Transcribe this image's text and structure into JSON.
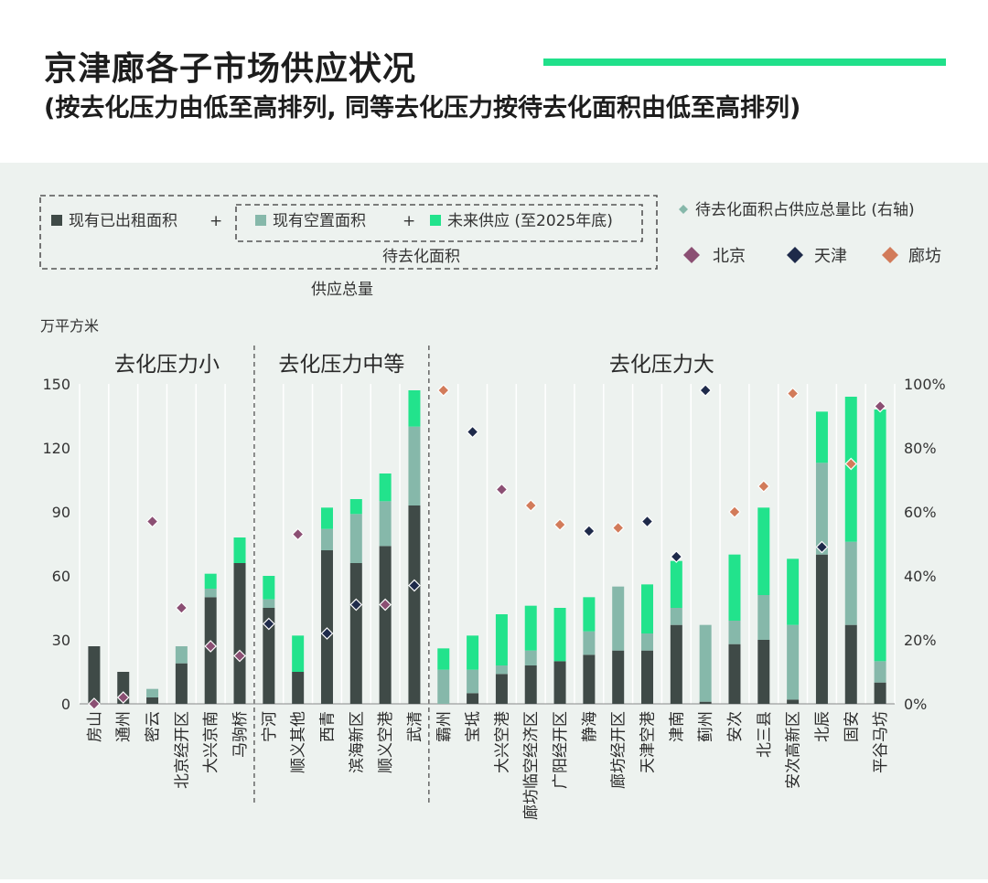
{
  "title": "京津廊各子市场供应状况",
  "subtitle": "(按去化压力由低至高排列, 同等去化压力按待去化面积由低至高排列)",
  "colors": {
    "accent": "#20e08a",
    "leased": "#3f4a47",
    "vacant": "#86b8aa",
    "future": "#22e38c",
    "beijing": "#8b4f73",
    "tianjin": "#1e2a4a",
    "langfang": "#d27b5a",
    "ratio_legend": "#86b8aa"
  },
  "legend": {
    "leased": "现有已出租面积",
    "plus1": "+",
    "vacant": "现有空置面积",
    "plus2": "+",
    "future": "未来供应 (至2025年底)",
    "pending": "待去化面积",
    "total": "供应总量",
    "ratio": "待去化面积占供应总量比 (右轴)",
    "beijing": "北京",
    "tianjin": "天津",
    "langfang": "廊坊"
  },
  "chart_data": {
    "type": "bar",
    "stacked": true,
    "ylabel": "万平方米",
    "ylim": [
      0,
      150
    ],
    "yticks": [
      0,
      30,
      60,
      90,
      120,
      150
    ],
    "y2lim": [
      0,
      100
    ],
    "y2ticks": [
      "0%",
      "20%",
      "40%",
      "60%",
      "80%",
      "100%"
    ],
    "groups": [
      {
        "label": "去化压力小",
        "count": 6
      },
      {
        "label": "去化压力中等",
        "count": 6
      },
      {
        "label": "去化压力大",
        "count": 16
      }
    ],
    "categories": [
      "房山",
      "通州",
      "密云",
      "北京经开区",
      "大兴京南",
      "马驹桥",
      "宁河",
      "顺义其他",
      "西青",
      "滨海新区",
      "顺义空港",
      "武清",
      "霸州",
      "宝坻",
      "大兴空港",
      "廊坊临空经济区",
      "广阳经开区",
      "静海",
      "廊坊经开区",
      "天津空港",
      "津南",
      "蓟州",
      "安次",
      "北三县",
      "安次高新区",
      "北辰",
      "固安",
      "平谷马坊"
    ],
    "series": [
      {
        "name": "现有已出租面积",
        "values": [
          27,
          15,
          3,
          19,
          50,
          66,
          45,
          15,
          72,
          66,
          74,
          93,
          0,
          5,
          14,
          18,
          20,
          23,
          25,
          25,
          37,
          1,
          28,
          30,
          2,
          70,
          37,
          10
        ]
      },
      {
        "name": "现有空置面积",
        "values": [
          0,
          0,
          4,
          8,
          4,
          0,
          4,
          0,
          10,
          23,
          21,
          37,
          16,
          11,
          4,
          7,
          0,
          11,
          30,
          8,
          8,
          36,
          11,
          21,
          35,
          43,
          39,
          10
        ]
      },
      {
        "name": "未来供应 (至2025年底)",
        "values": [
          0,
          0,
          0,
          0,
          7,
          12,
          11,
          17,
          10,
          7,
          13,
          17,
          10,
          16,
          24,
          21,
          25,
          16,
          0,
          23,
          22,
          0,
          31,
          41,
          31,
          24,
          68,
          118
        ]
      }
    ],
    "ratio": {
      "name": "待去化面积占供应总量比 (右轴)",
      "city": [
        "北京",
        "北京",
        "北京",
        "北京",
        "北京",
        "北京",
        "天津",
        "北京",
        "天津",
        "天津",
        "北京",
        "天津",
        "廊坊",
        "天津",
        "北京",
        "廊坊",
        "廊坊",
        "天津",
        "廊坊",
        "天津",
        "天津",
        "天津",
        "廊坊",
        "廊坊",
        "廊坊",
        "天津",
        "廊坊",
        "北京"
      ],
      "values": [
        0,
        2,
        57,
        30,
        18,
        15,
        25,
        53,
        22,
        31,
        31,
        37,
        98,
        85,
        67,
        62,
        56,
        54,
        55,
        57,
        46,
        98,
        60,
        68,
        97,
        49,
        75,
        93
      ]
    }
  }
}
